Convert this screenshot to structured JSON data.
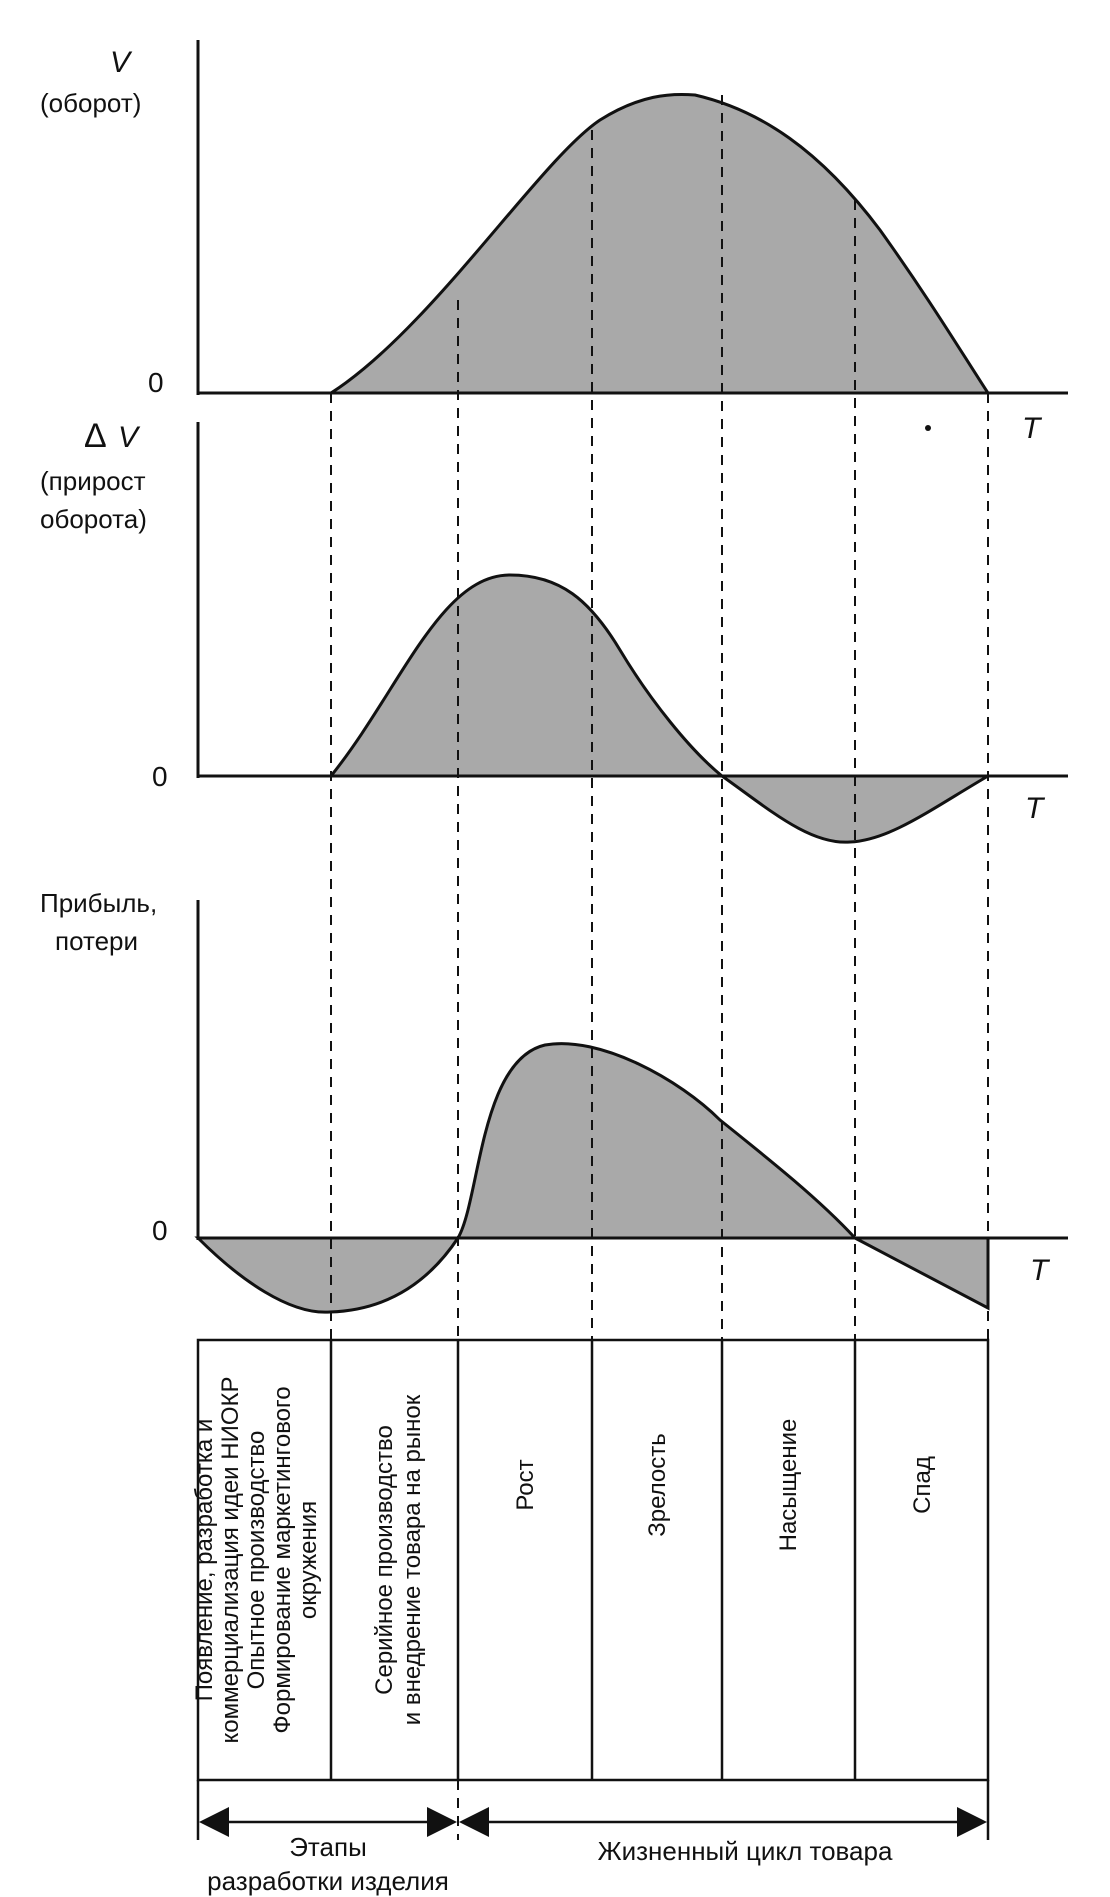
{
  "panels": {
    "turnover": {
      "symbol": "V",
      "label": "(оборот)",
      "zero": "0",
      "t_label": "T"
    },
    "turnover_growth": {
      "symbol": "V",
      "line1": "(прирост",
      "line2": "оборота)",
      "zero": "0",
      "t_label": "T"
    },
    "profit": {
      "line1": "Прибыль,",
      "line2": "потери",
      "zero": "0",
      "t_label": "T"
    }
  },
  "stages": {
    "s1": [
      "Появление, разработка и",
      "коммерциализация идеи НИОКР",
      "Опытное производство",
      "Формирование маркетингового",
      "окружения"
    ],
    "s2": [
      "Серийное производство",
      "и внедрение товара на рынок"
    ],
    "s3": "Рост",
    "s4": "Зрелость",
    "s5": "Насыщение",
    "s6": "Спад"
  },
  "footer": {
    "development_line1": "Этапы",
    "development_line2": "разработки изделия",
    "lifecycle": "Жизненный цикл товара"
  }
}
